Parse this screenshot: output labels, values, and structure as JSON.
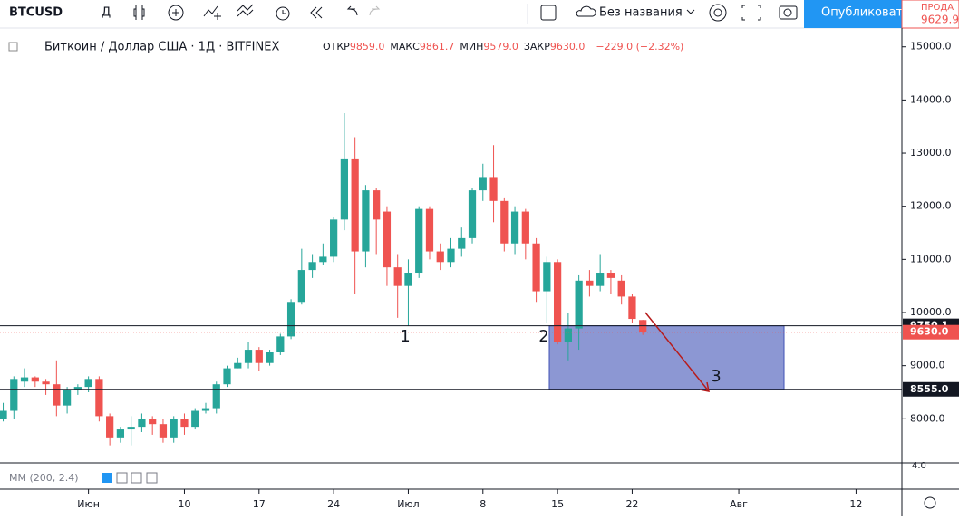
{
  "toolbar": {
    "symbol": "BTCUSD",
    "interval": "Д",
    "layout_name": "Без названия",
    "publish": "Опубликоват",
    "sell_label": "ПРОДА",
    "sell_price": "9629.9"
  },
  "chart_data": {
    "type": "candlestick",
    "legend": {
      "title": "Биткоин / Доллар США · 1Д · BITFINEX",
      "open_label": "ОТКР",
      "open": "9859.0",
      "high_label": "МАКС",
      "high": "9861.7",
      "low_label": "МИН",
      "low": "9579.0",
      "close_label": "ЗАКР",
      "close": "9630.0",
      "change": "−229.0 (−2.32%)"
    },
    "up_color": "#26a69a",
    "down_color": "#ef5350",
    "ohlc": {
      "open": [
        8000,
        8150,
        8700,
        8780,
        8700,
        8650,
        8250,
        8550,
        8600,
        8750,
        8050,
        7650,
        7800,
        7850,
        8000,
        7900,
        7650,
        8000,
        7850,
        8150,
        8200,
        8650,
        8950,
        9050,
        9300,
        9050,
        9250,
        9550,
        10200,
        10800,
        10950,
        11050,
        11750,
        12900,
        11150,
        12300,
        11900,
        10850,
        10500,
        10750,
        11950,
        11150,
        10950,
        11200,
        11400,
        12300,
        12550,
        12100,
        11300,
        11900,
        11300,
        10400,
        10950,
        9450,
        9700,
        10600,
        10500,
        10750,
        10600,
        10300,
        9859
      ],
      "high": [
        8300,
        8800,
        8950,
        8800,
        8750,
        9100,
        8600,
        8650,
        8800,
        8800,
        8100,
        7850,
        8050,
        8100,
        8050,
        8000,
        8050,
        8100,
        8200,
        8300,
        8700,
        9000,
        9150,
        9450,
        9350,
        9300,
        9600,
        10250,
        11200,
        11100,
        11300,
        11800,
        13750,
        13300,
        12400,
        12350,
        12000,
        11100,
        11000,
        12000,
        12000,
        11300,
        11400,
        11600,
        12350,
        12800,
        13150,
        12150,
        12000,
        11950,
        11400,
        11050,
        11000,
        10000,
        10700,
        10800,
        11100,
        10800,
        10700,
        10350,
        9861.7
      ],
      "low": [
        7950,
        8000,
        8600,
        8600,
        8450,
        8050,
        8100,
        8450,
        8500,
        7950,
        7500,
        7550,
        7500,
        7750,
        7700,
        7550,
        7550,
        7700,
        7800,
        8100,
        8100,
        8600,
        8950,
        8950,
        8900,
        9000,
        9200,
        9500,
        10150,
        10650,
        10900,
        10950,
        11550,
        10350,
        10850,
        11100,
        10500,
        9900,
        9750,
        10650,
        11000,
        10800,
        10850,
        11050,
        11300,
        12100,
        11700,
        11150,
        11100,
        11000,
        10200,
        9800,
        9400,
        9100,
        9300,
        10300,
        10400,
        10350,
        10150,
        9800,
        9579
      ],
      "close": [
        8150,
        8750,
        8780,
        8700,
        8650,
        8250,
        8550,
        8600,
        8750,
        8050,
        7650,
        7800,
        7850,
        8000,
        7900,
        7650,
        8000,
        7850,
        8150,
        8200,
        8650,
        8950,
        9050,
        9300,
        9050,
        9250,
        9550,
        10200,
        10800,
        10950,
        11050,
        11750,
        12900,
        11150,
        12300,
        11750,
        10850,
        10500,
        10750,
        11950,
        11150,
        10950,
        11200,
        11400,
        12300,
        12550,
        12100,
        11300,
        11900,
        11300,
        10400,
        10950,
        9450,
        9700,
        10600,
        10500,
        10750,
        10650,
        10300,
        9880,
        9630
      ]
    },
    "xlim": [
      -0.3,
      84.3
    ],
    "xticks": [
      {
        "value": 8,
        "label": "Июн"
      },
      {
        "value": 17,
        "label": "10"
      },
      {
        "value": 24,
        "label": "17"
      },
      {
        "value": 31,
        "label": "24"
      },
      {
        "value": 38,
        "label": "Июл"
      },
      {
        "value": 45,
        "label": "8"
      },
      {
        "value": 52,
        "label": "15"
      },
      {
        "value": 59,
        "label": "22"
      },
      {
        "value": 69,
        "label": "Авг"
      },
      {
        "value": 80,
        "label": "12"
      }
    ],
    "ylim": [
      7170,
      15200
    ],
    "yticks": [
      {
        "value": 8000,
        "label": "8000.0"
      },
      {
        "value": 9000,
        "label": "9000.0"
      },
      {
        "value": 10000,
        "label": "10000.0"
      },
      {
        "value": 11000,
        "label": "11000.0"
      },
      {
        "value": 12000,
        "label": "12000.0"
      },
      {
        "value": 13000,
        "label": "13000.0"
      },
      {
        "value": 14000,
        "label": "14000.0"
      },
      {
        "value": 15000,
        "label": "15000.0"
      }
    ],
    "levels": [
      {
        "value": 9750.1,
        "label": "9750.1"
      },
      {
        "value": 8555.0,
        "label": "8555.0"
      }
    ],
    "last_price": {
      "value": 9630.0,
      "label": "9630.0"
    },
    "annotations": [
      "1",
      "2",
      "3"
    ],
    "indicator": {
      "label": "MM (200, 2.4)",
      "tick": "4.0"
    }
  }
}
